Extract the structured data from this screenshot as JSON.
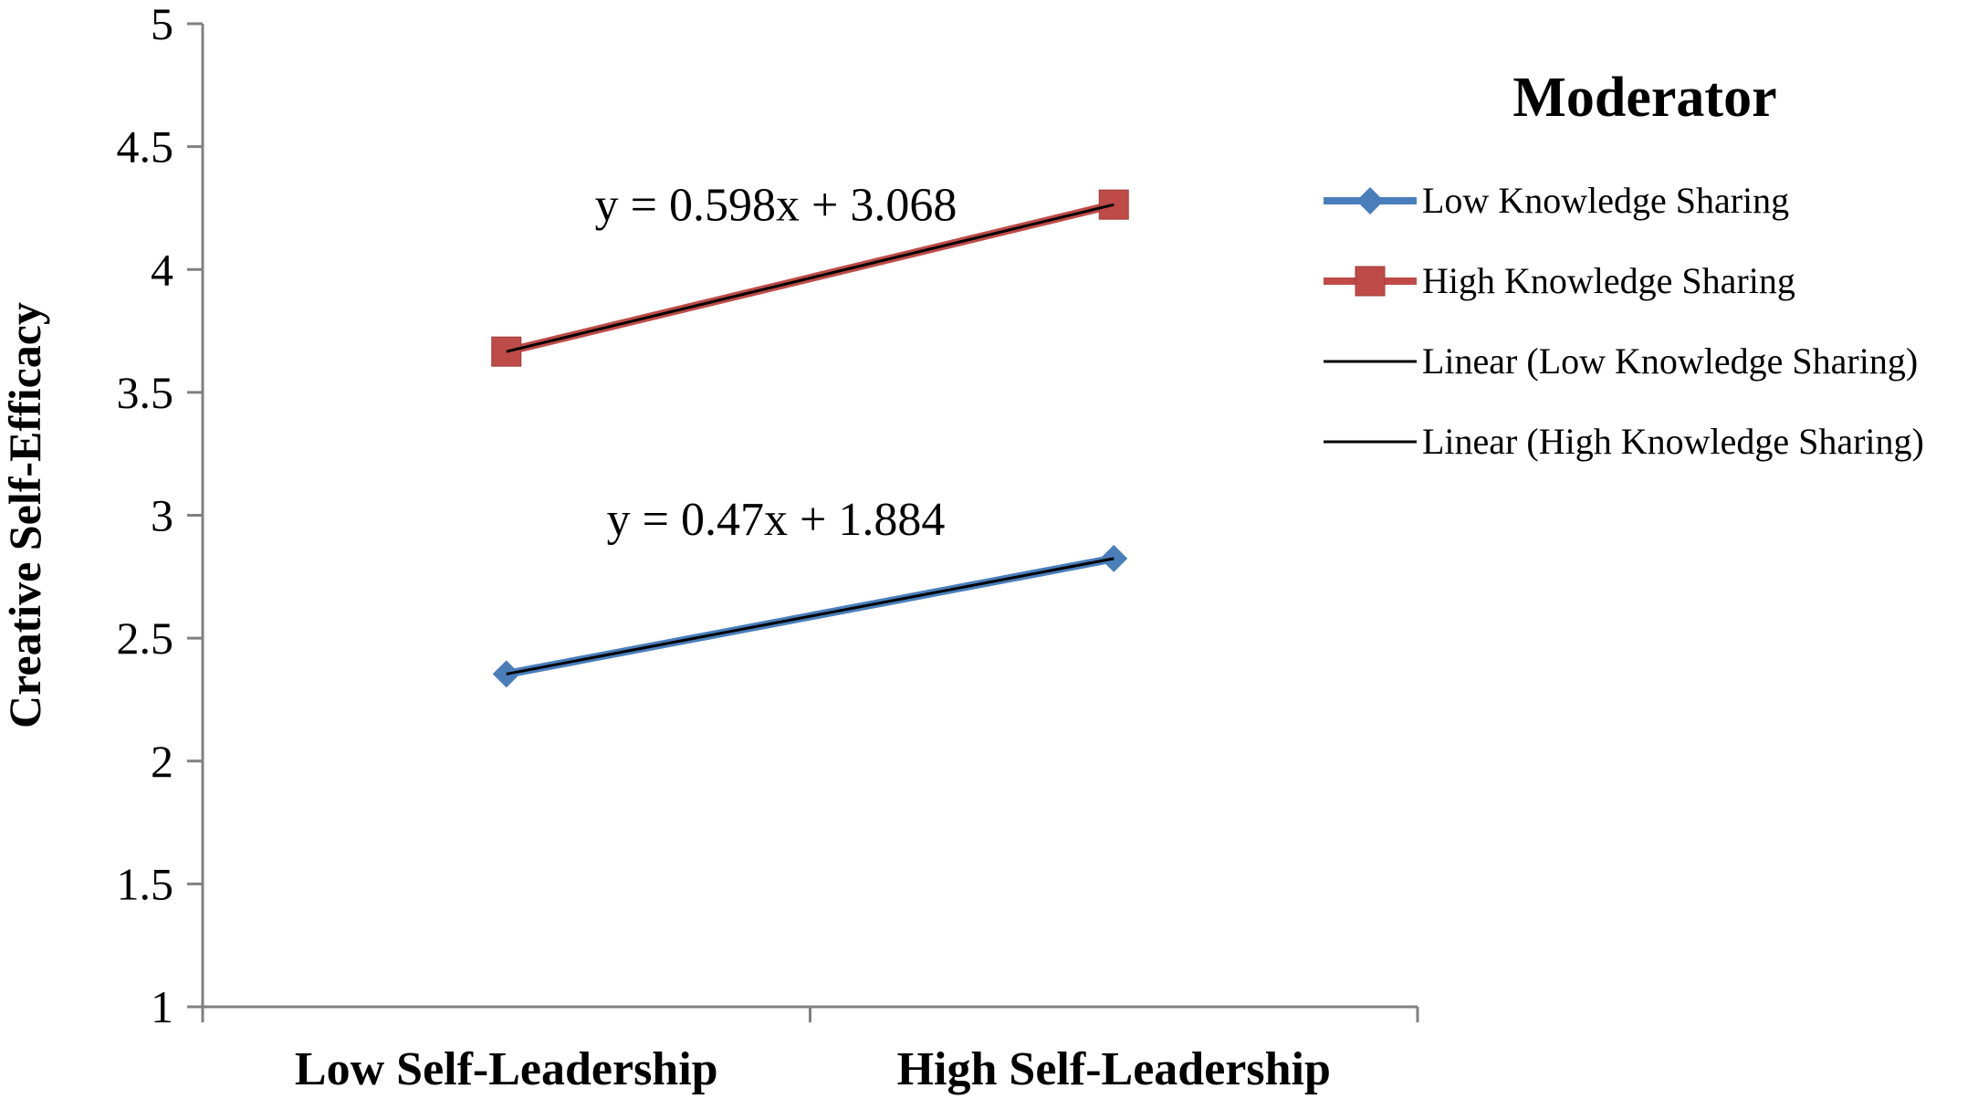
{
  "chart_data": {
    "type": "line",
    "categories": [
      "Low Self-Leadership",
      "High Self-Leadership"
    ],
    "series": [
      {
        "name": "Low Knowledge Sharing",
        "values": [
          2.354,
          2.824
        ],
        "color": "#4a7ebb",
        "marker": "diamond"
      },
      {
        "name": "High Knowledge Sharing",
        "values": [
          3.666,
          4.264
        ],
        "color": "#be4b48",
        "marker": "square"
      }
    ],
    "trendlines": [
      {
        "name": "Linear (Low Knowledge Sharing)",
        "equation": "y = 0.47x + 1.884",
        "slope": 0.47,
        "intercept": 1.884,
        "color": "#000000"
      },
      {
        "name": "Linear (High Knowledge Sharing)",
        "equation": "y = 0.598x + 3.068",
        "slope": 0.598,
        "intercept": 3.068,
        "color": "#000000"
      }
    ],
    "ylabel": "Creative Self-Efficacy",
    "xlabel": "",
    "ylim": [
      1,
      5
    ],
    "yticks": [
      "1",
      "1.5",
      "2",
      "2.5",
      "3",
      "3.5",
      "4",
      "4.5",
      "5"
    ],
    "grid": false,
    "legend": {
      "title": "Moderator",
      "placement": "right"
    }
  }
}
